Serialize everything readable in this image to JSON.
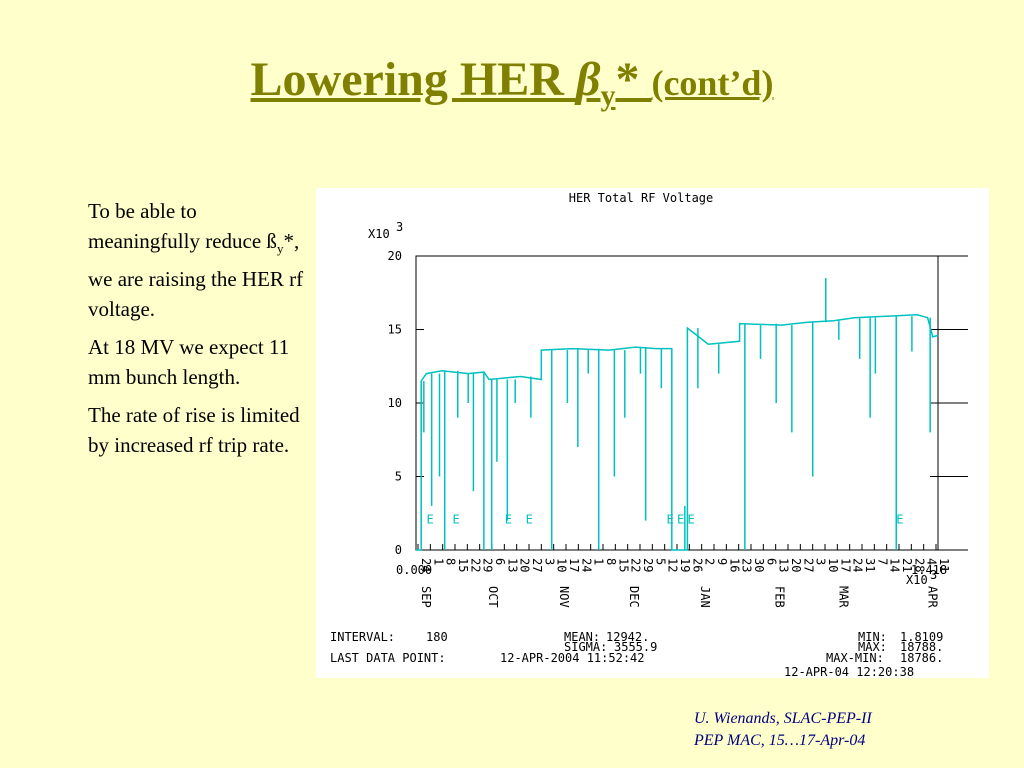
{
  "slide": {
    "title_main": "Lowering HER ",
    "title_beta": "β",
    "title_sub": "y",
    "title_star": "* ",
    "title_cont": "(cont’d)",
    "paragraphs": [
      {
        "pre": "To be able to meaningfully reduce ß",
        "sub": "y",
        "post": "*, we are raising the HER rf voltage."
      },
      {
        "text": "At 18 MV we expect 11 mm bunch length."
      },
      {
        "text": "The rate of rise is limited by increased rf trip rate."
      }
    ],
    "footer_line1": "U. Wienands, SLAC-PEP-II",
    "footer_line2": "PEP MAC, 15…17-Apr-04"
  },
  "colors": {
    "background": "#ffffcc",
    "title": "#7f7f00",
    "trace": "#00c0c0",
    "footer": "#000080"
  },
  "chart_data": {
    "type": "line",
    "title": "HER Total RF Voltage",
    "y_multiplier": "X10",
    "y_multiplier_exp": "3",
    "x_multiplier": "X10",
    "x_multiplier_exp": "3",
    "x_start_label": "0.000",
    "x_end_label": "1.418",
    "ylim": [
      0,
      20
    ],
    "y_ticks": [
      "0",
      "5",
      "10",
      "15",
      "20"
    ],
    "xlim": [
      0,
      1418
    ],
    "month_labels": [
      {
        "x": 0,
        "text": "SEP"
      },
      {
        "x": 232,
        "text": "OCT"
      },
      {
        "x": 480,
        "text": "NOV"
      },
      {
        "x": 722,
        "text": "DEC"
      },
      {
        "x": 970,
        "text": "JAN"
      },
      {
        "x": 1228,
        "text": "FEB"
      },
      {
        "x": 1450,
        "text": "MAR"
      },
      {
        "x": 1760,
        "text": "APR"
      }
    ],
    "day_labels": [
      "24",
      "1",
      "8",
      "15",
      "22",
      "29",
      "6",
      "13",
      "20",
      "27",
      "3",
      "10",
      "17",
      "24",
      "1",
      "8",
      "15",
      "22",
      "29",
      "5",
      "12",
      "19",
      "26",
      "2",
      "9",
      "16",
      "23",
      "30",
      "6",
      "13",
      "20",
      "27",
      "3",
      "10",
      "17",
      "24",
      "31",
      "7",
      "14",
      "21",
      "28",
      "4",
      "11"
    ],
    "e_markers": [
      0.02,
      0.07,
      0.17,
      0.21,
      0.48,
      0.5,
      0.52,
      0.92
    ],
    "baseline_trace": [
      [
        0.0,
        0
      ],
      [
        0.01,
        0
      ],
      [
        0.01,
        11.5
      ],
      [
        0.02,
        12
      ],
      [
        0.05,
        12.2
      ],
      [
        0.1,
        12.0
      ],
      [
        0.13,
        12.1
      ],
      [
        0.14,
        11.6
      ],
      [
        0.2,
        11.8
      ],
      [
        0.24,
        11.6
      ],
      [
        0.24,
        13.6
      ],
      [
        0.3,
        13.7
      ],
      [
        0.37,
        13.6
      ],
      [
        0.42,
        13.8
      ],
      [
        0.46,
        13.7
      ],
      [
        0.49,
        13.7
      ],
      [
        0.49,
        0
      ],
      [
        0.52,
        0
      ],
      [
        0.52,
        15.1
      ],
      [
        0.56,
        14.0
      ],
      [
        0.62,
        14.2
      ],
      [
        0.62,
        15.4
      ],
      [
        0.7,
        15.3
      ],
      [
        0.75,
        15.5
      ],
      [
        0.8,
        15.6
      ],
      [
        0.84,
        15.8
      ],
      [
        0.9,
        15.9
      ],
      [
        0.96,
        16.0
      ],
      [
        0.98,
        15.8
      ],
      [
        0.99,
        14.5
      ],
      [
        1.0,
        14.6
      ]
    ],
    "spikes": [
      [
        0.005,
        0
      ],
      [
        0.015,
        8
      ],
      [
        0.03,
        3
      ],
      [
        0.045,
        5
      ],
      [
        0.055,
        0
      ],
      [
        0.08,
        9
      ],
      [
        0.1,
        10
      ],
      [
        0.11,
        4
      ],
      [
        0.13,
        0
      ],
      [
        0.145,
        0
      ],
      [
        0.155,
        6
      ],
      [
        0.175,
        2
      ],
      [
        0.19,
        10
      ],
      [
        0.22,
        9
      ],
      [
        0.26,
        0
      ],
      [
        0.29,
        10
      ],
      [
        0.31,
        7
      ],
      [
        0.33,
        12
      ],
      [
        0.35,
        0
      ],
      [
        0.38,
        5
      ],
      [
        0.4,
        9
      ],
      [
        0.43,
        12
      ],
      [
        0.44,
        2
      ],
      [
        0.47,
        11
      ],
      [
        0.5,
        0
      ],
      [
        0.515,
        3
      ],
      [
        0.54,
        11
      ],
      [
        0.58,
        12
      ],
      [
        0.63,
        0
      ],
      [
        0.66,
        13
      ],
      [
        0.69,
        10
      ],
      [
        0.72,
        8
      ],
      [
        0.76,
        5
      ],
      [
        0.785,
        18.5
      ],
      [
        0.81,
        14.3
      ],
      [
        0.85,
        13
      ],
      [
        0.87,
        9
      ],
      [
        0.88,
        12
      ],
      [
        0.92,
        0
      ],
      [
        0.95,
        13.5
      ],
      [
        0.985,
        8
      ]
    ],
    "stats": {
      "interval_label": "INTERVAL:",
      "interval_value": "180",
      "last_point_label": "LAST DATA POINT:",
      "last_point_value": "12-APR-2004 11:52:42",
      "mean_label": "MEAN:",
      "mean_value": "12942.",
      "sigma_label": "SIGMA:",
      "sigma_value": "3555.9",
      "min_label": "MIN:",
      "min_value": "1.8109",
      "max_label": "MAX:",
      "max_value": "18788.",
      "maxmin_label": "MAX-MIN:",
      "maxmin_value": "18786.",
      "timestamp": "12-APR-04 12:20:38"
    }
  }
}
